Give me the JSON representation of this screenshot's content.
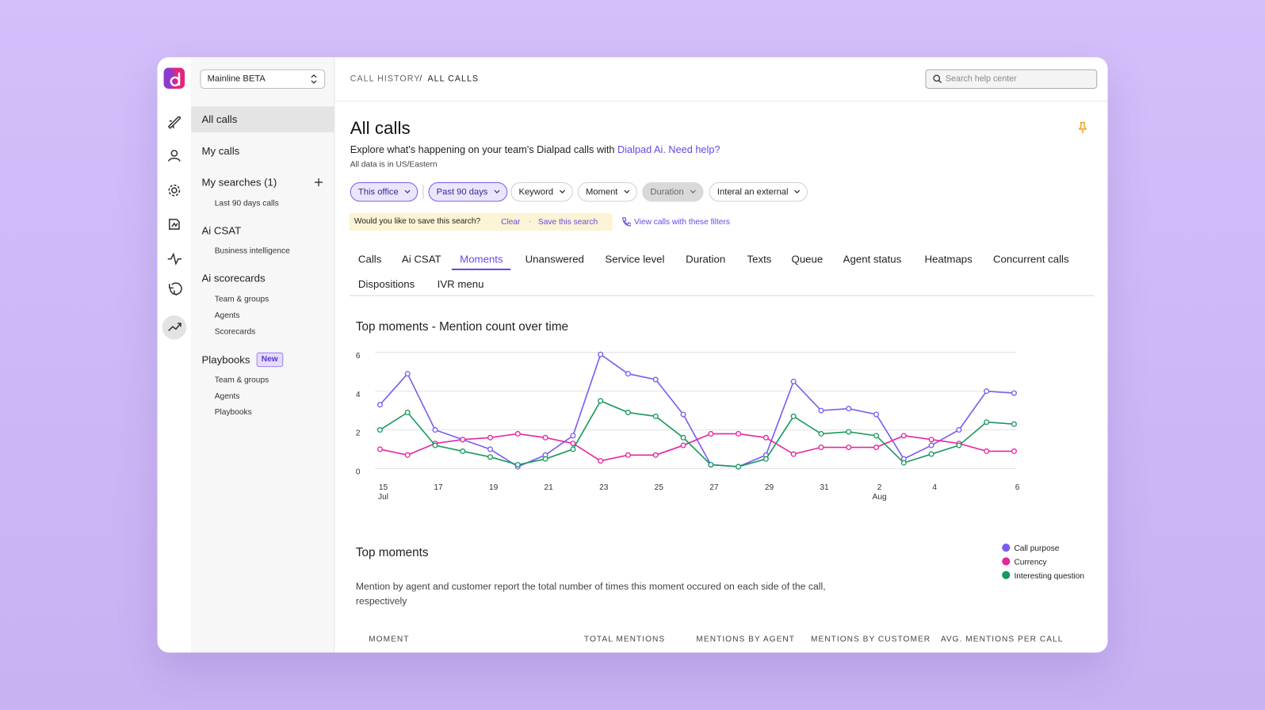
{
  "app": {
    "workspace": "Mainline BETA",
    "breadcrumb": [
      "CALL HISTORY",
      "ALL CALLS"
    ],
    "search_placeholder": "Search help center"
  },
  "sidebar": {
    "sections": [
      {
        "label": "All calls"
      },
      {
        "label": "My calls"
      },
      {
        "label": "My searches (1)",
        "items": [
          "Last 90 days calls"
        ]
      },
      {
        "label": "Ai CSAT",
        "items": [
          "Business intelligence"
        ]
      },
      {
        "label": "Ai scorecards",
        "items": [
          "Team & groups",
          "Agents",
          "Scorecards"
        ]
      },
      {
        "label": "Playbooks",
        "badge": "New",
        "items": [
          "Team & groups",
          "Agents",
          "Playbooks"
        ]
      }
    ]
  },
  "header": {
    "title": "All calls",
    "description": "Explore what's happening on your team's Dialpad calls with",
    "ai_link": "Dialpad Ai.",
    "help_link": "Need help?",
    "timezone": "All data is in US/Eastern"
  },
  "filters": [
    "This office",
    "Past 90 days",
    "Keyword",
    "Moment",
    "Duration",
    "Interal an external"
  ],
  "save_bar": {
    "prompt": "Would you like to save this search?",
    "clear": "Clear",
    "save": "Save this search",
    "view": "View calls with these filters"
  },
  "tabs": [
    "Calls",
    "Ai CSAT",
    "Moments",
    "Unanswered",
    "Service level",
    "Duration",
    "Texts",
    "Queue",
    "Agent status",
    "Heatmaps",
    "Concurrent calls",
    "Dispositions",
    "IVR menu"
  ],
  "active_tab": 2,
  "chart_data": {
    "type": "line",
    "title": "Top moments - Mention count over time",
    "categories": [
      "15",
      null,
      "17",
      null,
      "19",
      null,
      "21",
      null,
      "23",
      null,
      "25",
      null,
      "27",
      null,
      "29",
      null,
      "31",
      null,
      "2",
      null,
      "4",
      null,
      null,
      "6"
    ],
    "category_months": [
      "Jul",
      null,
      null,
      null,
      null,
      null,
      null,
      null,
      null,
      null,
      null,
      null,
      null,
      null,
      null,
      null,
      null,
      null,
      "Aug",
      null,
      null,
      null,
      null,
      null
    ],
    "ylim": [
      0,
      6
    ],
    "yticks": [
      0,
      2,
      4,
      6
    ],
    "grid": true,
    "series": [
      {
        "name": "Call purpose",
        "color": "#7c5cf0",
        "values": [
          3.3,
          4.9,
          2.0,
          1.5,
          1.0,
          0.1,
          0.7,
          1.7,
          5.9,
          4.9,
          4.6,
          2.8,
          0.2,
          0.1,
          0.7,
          4.5,
          3.0,
          3.1,
          2.8,
          0.5,
          1.2,
          2.0,
          4.0,
          3.9
        ]
      },
      {
        "name": "Currency",
        "color": "#e5269f",
        "values": [
          1.0,
          0.7,
          1.3,
          1.5,
          1.6,
          1.8,
          1.6,
          1.3,
          0.4,
          0.7,
          0.7,
          1.2,
          1.8,
          1.8,
          1.6,
          0.75,
          1.1,
          1.1,
          1.1,
          1.7,
          1.5,
          1.3,
          0.9,
          0.9
        ]
      },
      {
        "name": "Interesting question",
        "color": "#1a9a5e",
        "values": [
          2.0,
          2.9,
          1.2,
          0.9,
          0.6,
          0.2,
          0.5,
          1.0,
          3.5,
          2.9,
          2.7,
          1.6,
          0.2,
          0.1,
          0.5,
          2.7,
          1.8,
          1.9,
          1.7,
          0.3,
          0.75,
          1.2,
          2.4,
          2.3
        ]
      }
    ]
  },
  "top_moments": {
    "title": "Top moments",
    "description": "Mention by agent and customer report the total number of times this moment occured on each side of the call, respectively",
    "columns": [
      "MOMENT",
      "TOTAL MENTIONS",
      "MENTIONS BY AGENT",
      "MENTIONS BY CUSTOMER",
      "AVG. MENTIONS PER CALL"
    ]
  }
}
